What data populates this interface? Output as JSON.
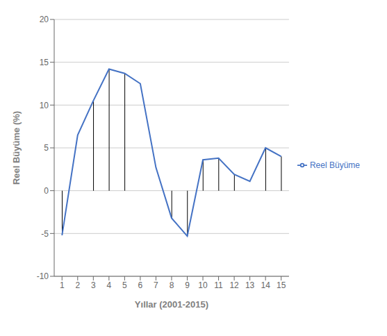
{
  "chart_data": {
    "type": "line",
    "xlabel": "Yıllar (2001-2015)",
    "ylabel": "Reel Büyüme  (%)",
    "x": [
      1,
      2,
      3,
      4,
      5,
      6,
      7,
      8,
      9,
      10,
      11,
      12,
      13,
      14,
      15
    ],
    "series": [
      {
        "name": "Reel Büyüme",
        "color": "#4472C4",
        "values": [
          -5.2,
          6.5,
          10.5,
          14.2,
          13.7,
          12.5,
          2.7,
          -3.2,
          -5.3,
          3.6,
          3.8,
          1.9,
          1.1,
          5.0,
          4.0
        ]
      },
      {
        "type": "vline",
        "color": "#000000",
        "values": [
          -5.2,
          null,
          10.5,
          14.2,
          13.7,
          null,
          null,
          -3.2,
          -5.3,
          3.6,
          3.8,
          1.9,
          null,
          5.0,
          4.0
        ]
      }
    ],
    "xlim": [
      0.5,
      15.5
    ],
    "xticks": [
      1,
      2,
      3,
      4,
      5,
      6,
      7,
      8,
      9,
      10,
      11,
      12,
      13,
      14,
      15
    ],
    "ylim": [
      -10,
      20
    ],
    "yticks": [
      -10,
      -5,
      0,
      5,
      10,
      15,
      20
    ],
    "grid": true,
    "legend": "right"
  }
}
